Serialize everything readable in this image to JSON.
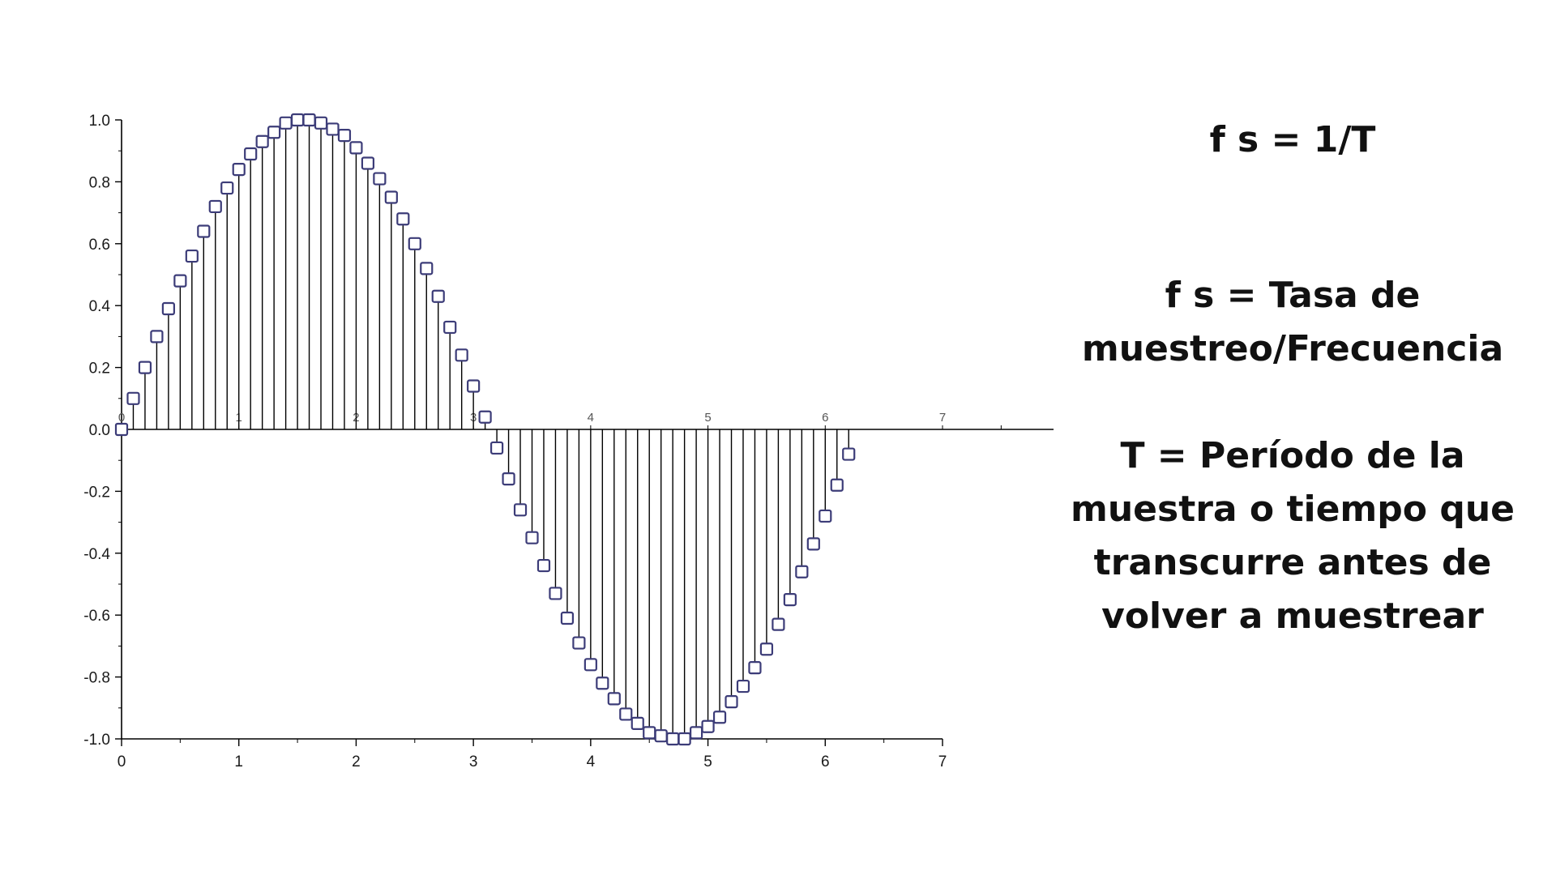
{
  "chart_data": {
    "type": "stem",
    "title": "",
    "xlabel": "",
    "ylabel": "",
    "xlim": [
      0,
      7
    ],
    "ylim": [
      -1.0,
      1.0
    ],
    "x_ticks": [
      "0",
      "1",
      "2",
      "3",
      "4",
      "5",
      "6",
      "7"
    ],
    "y_ticks": [
      "1.0",
      "0.8",
      "0.6",
      "0.4",
      "0.2",
      "0.0",
      "-0.2",
      "-0.4",
      "-0.6",
      "-0.8",
      "-1.0"
    ],
    "inner_x_ticks": [
      "0",
      "1",
      "2",
      "3",
      "4",
      "5",
      "6",
      "7"
    ],
    "marker": "square",
    "marker_color": "#3c3c78",
    "stem_color": "#000000",
    "x": [
      0.0,
      0.1,
      0.2,
      0.3,
      0.4,
      0.5,
      0.6,
      0.7,
      0.8,
      0.9,
      1.0,
      1.1,
      1.2,
      1.3,
      1.4,
      1.5,
      1.6,
      1.7,
      1.8,
      1.9,
      2.0,
      2.1,
      2.2,
      2.3,
      2.4,
      2.5,
      2.6,
      2.7,
      2.8,
      2.9,
      3.0,
      3.1,
      3.2,
      3.3,
      3.4,
      3.5,
      3.6,
      3.7,
      3.8,
      3.9,
      4.0,
      4.1,
      4.2,
      4.3,
      4.4,
      4.5,
      4.6,
      4.7,
      4.8,
      4.9,
      5.0,
      5.1,
      5.2,
      5.3,
      5.4,
      5.5,
      5.6,
      5.7,
      5.8,
      5.9,
      6.0,
      6.1,
      6.2
    ],
    "y": [
      0.0,
      0.1,
      0.2,
      0.3,
      0.39,
      0.48,
      0.56,
      0.64,
      0.72,
      0.78,
      0.84,
      0.89,
      0.93,
      0.96,
      0.99,
      1.0,
      1.0,
      0.99,
      0.97,
      0.95,
      0.91,
      0.86,
      0.81,
      0.75,
      0.68,
      0.6,
      0.52,
      0.43,
      0.33,
      0.24,
      0.14,
      0.04,
      -0.06,
      -0.16,
      -0.26,
      -0.35,
      -0.44,
      -0.53,
      -0.61,
      -0.69,
      -0.76,
      -0.82,
      -0.87,
      -0.92,
      -0.95,
      -0.98,
      -0.99,
      -1.0,
      -1.0,
      -0.98,
      -0.96,
      -0.93,
      -0.88,
      -0.83,
      -0.77,
      -0.71,
      -0.63,
      -0.55,
      -0.46,
      -0.37,
      -0.28,
      -0.18,
      -0.08
    ]
  },
  "text_panel": {
    "formula": "f s = 1/T",
    "fs_definition": "f s = Tasa de muestreo/Frecuencia",
    "t_definition": "T = Período de la muestra o tiempo que transcurre antes de volver a muestrear"
  }
}
